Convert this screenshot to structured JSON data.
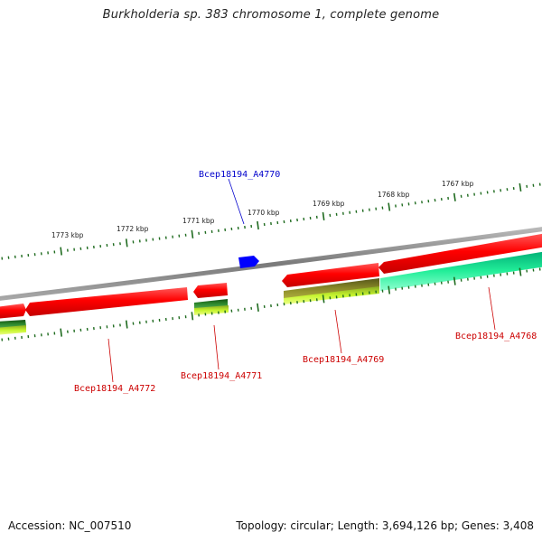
{
  "title": "Burkholderia sp. 383 chromosome 1, complete genome",
  "footer": {
    "accession": "Accession: NC_007510",
    "summary": "Topology: circular; Length: 3,694,126 bp; Genes: 3,408"
  },
  "ticks": {
    "color": "#1f6b1f",
    "labels": [
      "1773 kbp",
      "1772 kbp",
      "1771 kbp",
      "1770 kbp",
      "1769 kbp",
      "1768 kbp",
      "1767 kbp"
    ]
  },
  "genes": [
    {
      "name": "Bcep18194_A4770",
      "color": "#0000cc"
    },
    {
      "name": "Bcep18194_A4768",
      "color": "#cc0000"
    },
    {
      "name": "Bcep18194_A4769",
      "color": "#cc0000"
    },
    {
      "name": "Bcep18194_A4771",
      "color": "#cc0000"
    },
    {
      "name": "Bcep18194_A4772",
      "color": "#cc0000"
    }
  ],
  "colors": {
    "backbone": "#8a8a8a",
    "cds": "#ff0000",
    "feature_blue": "#0000ff",
    "cog_dark_green": "#2e7d32",
    "cog_olive": "#7a7a1e",
    "cog_yellow_green": "#ccff33",
    "cog_teal": "#22ee99"
  }
}
